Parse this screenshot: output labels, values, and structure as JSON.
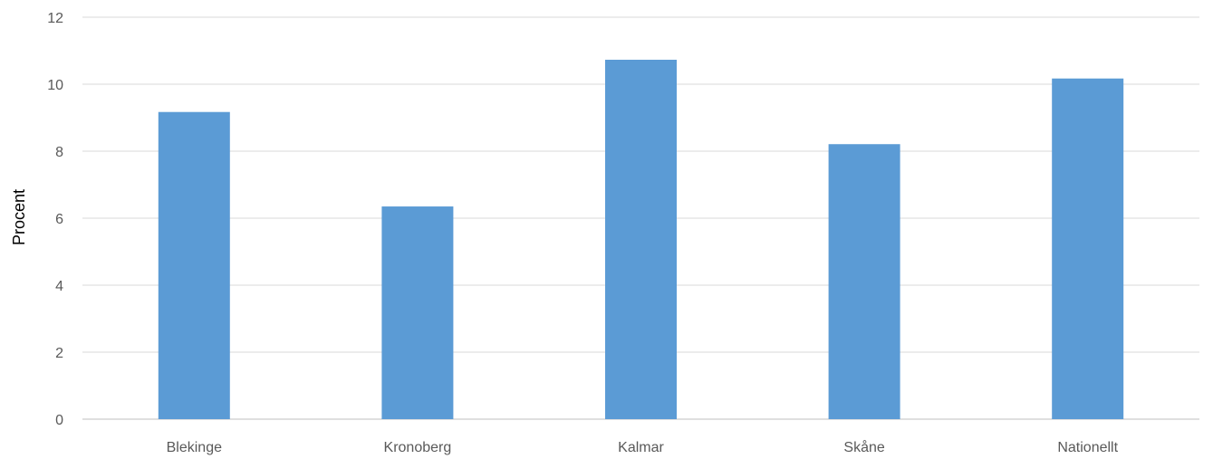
{
  "chart_data": {
    "type": "bar",
    "title": "",
    "xlabel": "",
    "ylabel": "Procent",
    "categories": [
      "Blekinge",
      "Kronoberg",
      "Kalmar",
      "Skåne",
      "Nationellt"
    ],
    "series": [
      {
        "values": [
          9.17,
          6.35,
          10.73,
          8.21,
          10.17
        ]
      }
    ],
    "ylim": [
      0,
      12
    ],
    "yticks": [
      0,
      2,
      4,
      6,
      8,
      10,
      12
    ],
    "grid": true,
    "legend": "none",
    "colors": {
      "bar": "#5b9bd5",
      "grid": "#d9d9d9",
      "axis": "#bfbfbf"
    }
  }
}
